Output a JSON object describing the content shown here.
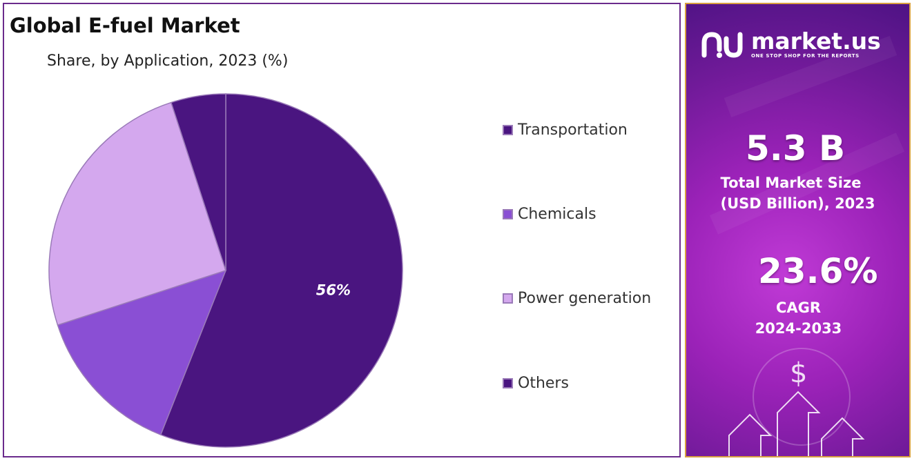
{
  "chart_data": {
    "type": "pie",
    "title": "Global E-fuel Market",
    "subtitle": "Share, by Application, 2023 (%)",
    "categories": [
      "Transportation",
      "Chemicals",
      "Power generation",
      "Others"
    ],
    "values": [
      56,
      14,
      25,
      5
    ],
    "colors": [
      "#4a1580",
      "#8a4fd4",
      "#d4a8ee",
      "#4a1580"
    ],
    "data_labels": [
      "56%",
      "",
      "",
      ""
    ],
    "legend_position": "right"
  },
  "legend": {
    "items": [
      {
        "label": "Transportation",
        "color": "#4a1580"
      },
      {
        "label": "Chemicals",
        "color": "#8a4fd4"
      },
      {
        "label": "Power generation",
        "color": "#d4a8ee"
      },
      {
        "label": "Others",
        "color": "#4a1580"
      }
    ]
  },
  "brand": {
    "name": "market.us",
    "tagline": "ONE STOP SHOP FOR THE REPORTS",
    "logo_icon": "market-us-logo-icon"
  },
  "stats": {
    "market_size_value": "5.3 B",
    "market_size_label_line1": "Total Market Size",
    "market_size_label_line2": "(USD Billion), 2023",
    "cagr_value": "23.6%",
    "cagr_label_line1": "CAGR",
    "cagr_label_line2": "2024-2033"
  },
  "decor": {
    "dollar_symbol": "$"
  }
}
